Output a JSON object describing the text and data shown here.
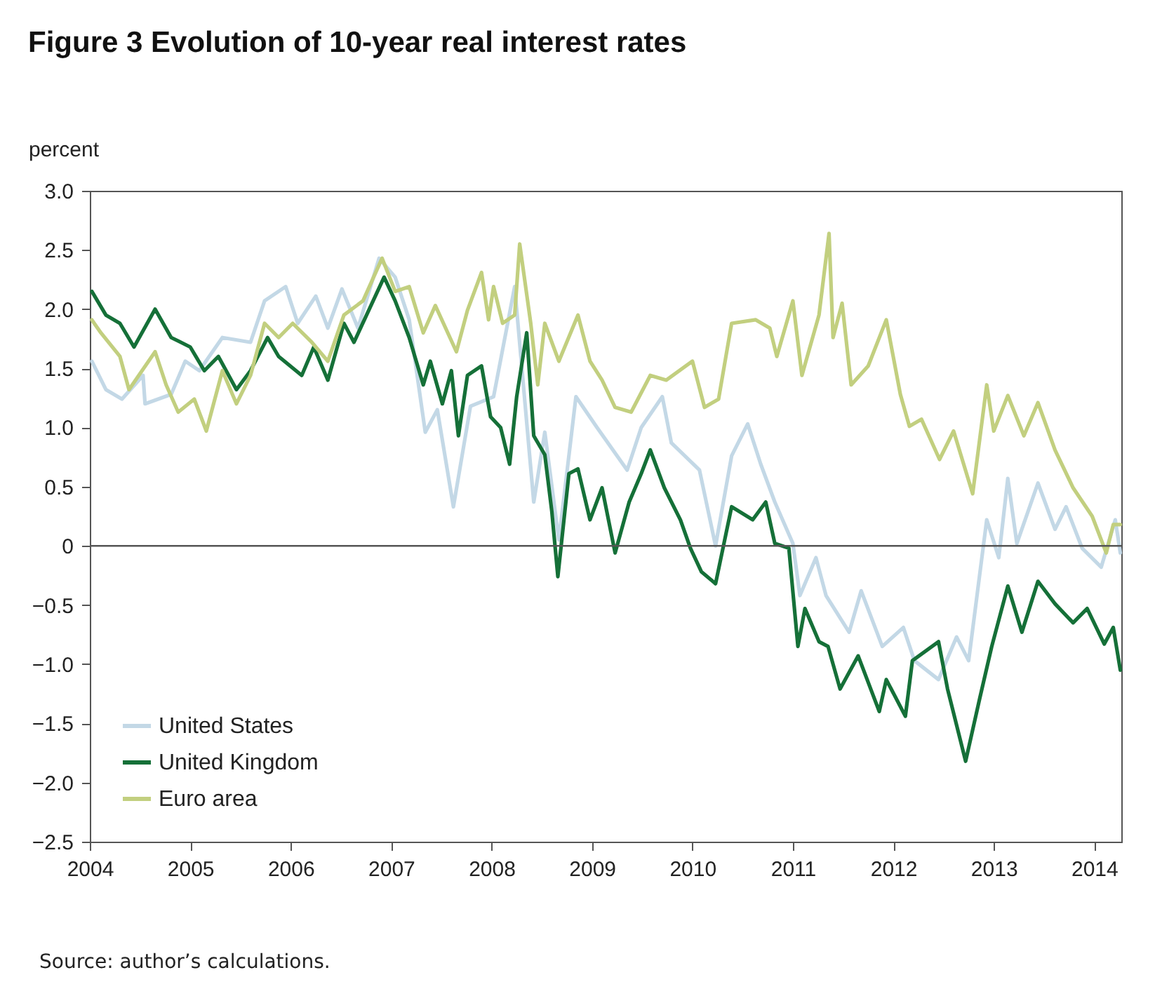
{
  "chart_data": {
    "type": "line",
    "title": "Figure 3    Evolution of 10-year real interest rates",
    "ylabel": "percent",
    "annotations": [
      "Source: author’s calculations."
    ],
    "xlim": [
      2004,
      2014.27
    ],
    "xticks": [
      2004,
      2005,
      2006,
      2007,
      2008,
      2009,
      2010,
      2011,
      2012,
      2013,
      2014
    ],
    "ylim": [
      -2.5,
      3
    ],
    "yticks": [
      {
        "value": -2.5,
        "label": "−2.5"
      },
      {
        "value": -2,
        "label": "−2.0"
      },
      {
        "value": -1.5,
        "label": "−1.5"
      },
      {
        "value": -1,
        "label": "−1.0"
      },
      {
        "value": -0.5,
        "label": "−0.5"
      },
      0,
      {
        "value": 0.5,
        "label": "0.5"
      },
      {
        "value": 1,
        "label": "1.0"
      },
      {
        "value": 1.5,
        "label": "1.5"
      },
      {
        "value": 2,
        "label": "2.0"
      },
      {
        "value": 2.5,
        "label": "2.5"
      },
      {
        "value": 3,
        "label": "3.0"
      }
    ],
    "grid": false,
    "legend": "bottom left",
    "line_style": "solid",
    "marker": "none",
    "ref_lines": [
      {
        "axis": "y",
        "value": 0,
        "color": "#555555"
      }
    ],
    "series": [
      {
        "name": "United States",
        "color": "#c3d8e6",
        "x": [
          2004.02,
          2004.16,
          2004.32,
          2004.53,
          2004.55,
          2004.81,
          2004.95,
          2005.09,
          2005.32,
          2005.6,
          2005.74,
          2005.95,
          2006.07,
          2006.25,
          2006.37,
          2006.51,
          2006.67,
          2006.88,
          2007.04,
          2007.18,
          2007.34,
          2007.46,
          2007.62,
          2007.79,
          2008.02,
          2008.23,
          2008.42,
          2008.53,
          2008.67,
          2008.84,
          2009.05,
          2009.35,
          2009.49,
          2009.7,
          2009.79,
          2010.07,
          2010.23,
          2010.39,
          2010.55,
          2010.68,
          2010.82,
          2011.0,
          2011.07,
          2011.23,
          2011.33,
          2011.56,
          2011.68,
          2011.89,
          2012.1,
          2012.21,
          2012.45,
          2012.63,
          2012.75,
          2012.93,
          2013.05,
          2013.14,
          2013.23,
          2013.44,
          2013.61,
          2013.72,
          2013.88,
          2014.07,
          2014.21,
          2014.26
        ],
        "values": [
          1.56,
          1.32,
          1.24,
          1.44,
          1.2,
          1.28,
          1.56,
          1.48,
          1.76,
          1.72,
          2.07,
          2.19,
          1.88,
          2.11,
          1.84,
          2.17,
          1.84,
          2.43,
          2.27,
          1.91,
          0.96,
          1.15,
          0.33,
          1.18,
          1.26,
          2.19,
          0.37,
          0.96,
          0.05,
          1.26,
          1.0,
          0.64,
          1.0,
          1.26,
          0.87,
          0.64,
          0.0,
          0.76,
          1.03,
          0.69,
          0.37,
          0.02,
          -0.42,
          -0.1,
          -0.42,
          -0.73,
          -0.38,
          -0.85,
          -0.69,
          -0.97,
          -1.13,
          -0.77,
          -0.97,
          0.22,
          -0.1,
          0.57,
          0.02,
          0.53,
          0.14,
          0.33,
          -0.02,
          -0.18,
          0.22,
          -0.06
        ]
      },
      {
        "name": "United Kingdom",
        "color": "#157038",
        "x": [
          2004.02,
          2004.16,
          2004.3,
          2004.44,
          2004.65,
          2004.81,
          2005.0,
          2005.14,
          2005.28,
          2005.46,
          2005.6,
          2005.77,
          2005.88,
          2006.11,
          2006.23,
          2006.37,
          2006.53,
          2006.63,
          2006.93,
          2007.04,
          2007.18,
          2007.32,
          2007.39,
          2007.51,
          2007.6,
          2007.67,
          2007.76,
          2007.9,
          2007.99,
          2008.09,
          2008.18,
          2008.25,
          2008.35,
          2008.42,
          2008.53,
          2008.6,
          2008.66,
          2008.77,
          2008.86,
          2008.98,
          2009.1,
          2009.23,
          2009.37,
          2009.49,
          2009.58,
          2009.72,
          2009.88,
          2009.98,
          2010.09,
          2010.23,
          2010.39,
          2010.6,
          2010.73,
          2010.82,
          2010.96,
          2011.05,
          2011.12,
          2011.26,
          2011.35,
          2011.47,
          2011.65,
          2011.86,
          2011.93,
          2012.12,
          2012.19,
          2012.45,
          2012.54,
          2012.72,
          2012.86,
          2012.98,
          2013.14,
          2013.28,
          2013.44,
          2013.61,
          2013.79,
          2013.93,
          2014.1,
          2014.19,
          2014.26
        ],
        "values": [
          2.15,
          1.95,
          1.88,
          1.68,
          2.0,
          1.76,
          1.68,
          1.48,
          1.6,
          1.32,
          1.48,
          1.76,
          1.6,
          1.44,
          1.68,
          1.4,
          1.88,
          1.72,
          2.27,
          2.07,
          1.76,
          1.36,
          1.56,
          1.2,
          1.48,
          0.93,
          1.44,
          1.52,
          1.09,
          1.0,
          0.69,
          1.26,
          1.8,
          0.93,
          0.77,
          0.29,
          -0.26,
          0.61,
          0.65,
          0.22,
          0.49,
          -0.06,
          0.37,
          0.61,
          0.81,
          0.49,
          0.22,
          -0.02,
          -0.22,
          -0.32,
          0.33,
          0.22,
          0.37,
          0.02,
          -0.02,
          -0.85,
          -0.53,
          -0.81,
          -0.85,
          -1.21,
          -0.93,
          -1.4,
          -1.13,
          -1.44,
          -0.97,
          -0.81,
          -1.21,
          -1.82,
          -1.29,
          -0.85,
          -0.34,
          -0.73,
          -0.3,
          -0.49,
          -0.65,
          -0.53,
          -0.83,
          -0.69,
          -1.05
        ]
      },
      {
        "name": "Euro area",
        "color": "#c2cf7f",
        "x": [
          2004.02,
          2004.11,
          2004.3,
          2004.39,
          2004.65,
          2004.76,
          2004.88,
          2005.04,
          2005.16,
          2005.32,
          2005.46,
          2005.6,
          2005.74,
          2005.88,
          2006.02,
          2006.21,
          2006.37,
          2006.53,
          2006.72,
          2006.91,
          2007.04,
          2007.18,
          2007.32,
          2007.44,
          2007.65,
          2007.76,
          2007.9,
          2007.97,
          2008.02,
          2008.11,
          2008.23,
          2008.28,
          2008.39,
          2008.46,
          2008.53,
          2008.67,
          2008.86,
          2008.98,
          2009.1,
          2009.23,
          2009.39,
          2009.58,
          2009.74,
          2010.0,
          2010.12,
          2010.26,
          2010.39,
          2010.63,
          2010.77,
          2010.84,
          2011.0,
          2011.09,
          2011.26,
          2011.36,
          2011.4,
          2011.49,
          2011.58,
          2011.75,
          2011.93,
          2012.07,
          2012.16,
          2012.28,
          2012.46,
          2012.6,
          2012.79,
          2012.93,
          2013.0,
          2013.14,
          2013.3,
          2013.44,
          2013.61,
          2013.79,
          2013.98,
          2014.12,
          2014.19,
          2014.26
        ],
        "values": [
          1.91,
          1.8,
          1.6,
          1.32,
          1.64,
          1.36,
          1.13,
          1.24,
          0.97,
          1.48,
          1.2,
          1.44,
          1.88,
          1.76,
          1.88,
          1.72,
          1.56,
          1.95,
          2.07,
          2.43,
          2.15,
          2.19,
          1.8,
          2.03,
          1.64,
          1.99,
          2.31,
          1.91,
          2.19,
          1.88,
          1.95,
          2.55,
          1.88,
          1.36,
          1.88,
          1.56,
          1.95,
          1.56,
          1.4,
          1.17,
          1.13,
          1.44,
          1.4,
          1.56,
          1.17,
          1.24,
          1.88,
          1.91,
          1.84,
          1.6,
          2.07,
          1.44,
          1.95,
          2.64,
          1.76,
          2.05,
          1.36,
          1.52,
          1.91,
          1.28,
          1.01,
          1.07,
          0.73,
          0.97,
          0.44,
          1.36,
          0.97,
          1.27,
          0.93,
          1.21,
          0.81,
          0.49,
          0.25,
          -0.06,
          0.18,
          0.18
        ]
      }
    ]
  }
}
